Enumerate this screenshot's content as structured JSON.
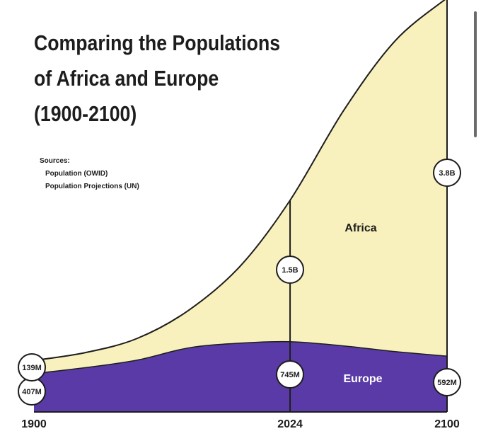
{
  "title_lines": [
    "Comparing the Populations",
    "of Africa and Europe",
    "(1900-2100)"
  ],
  "sources": {
    "heading": "Sources:",
    "items": [
      "Population (OWID)",
      "Population Projections (UN)"
    ]
  },
  "colors": {
    "africa": "#f8f1bd",
    "europe": "#5a3aa6",
    "outline": "#1d1d1d"
  },
  "chart_data": {
    "type": "area",
    "stacked": true,
    "x_ticks": [
      "1900",
      "2024",
      "2100"
    ],
    "x": [
      1900,
      1925,
      1950,
      1975,
      2000,
      2024,
      2050,
      2075,
      2100
    ],
    "series": [
      {
        "name": "Europe",
        "values": [
          0.407,
          0.47,
          0.55,
          0.68,
          0.73,
          0.745,
          0.7,
          0.64,
          0.592
        ],
        "region_label": "Europe"
      },
      {
        "name": "Africa",
        "values": [
          0.139,
          0.16,
          0.23,
          0.4,
          0.82,
          1.5,
          2.5,
          3.3,
          3.8
        ],
        "region_label": "Africa"
      }
    ],
    "ylim": [
      0,
      4.4
    ],
    "markers": [
      {
        "x": 1900,
        "series": "Europe",
        "label": "407M"
      },
      {
        "x": 1900,
        "series": "Africa",
        "label": "139M"
      },
      {
        "x": 2024,
        "series": "Europe",
        "label": "745M"
      },
      {
        "x": 2024,
        "series": "Africa",
        "label": "1.5B"
      },
      {
        "x": 2100,
        "series": "Europe",
        "label": "592M"
      },
      {
        "x": 2100,
        "series": "Africa",
        "label": "3.8B"
      }
    ]
  }
}
